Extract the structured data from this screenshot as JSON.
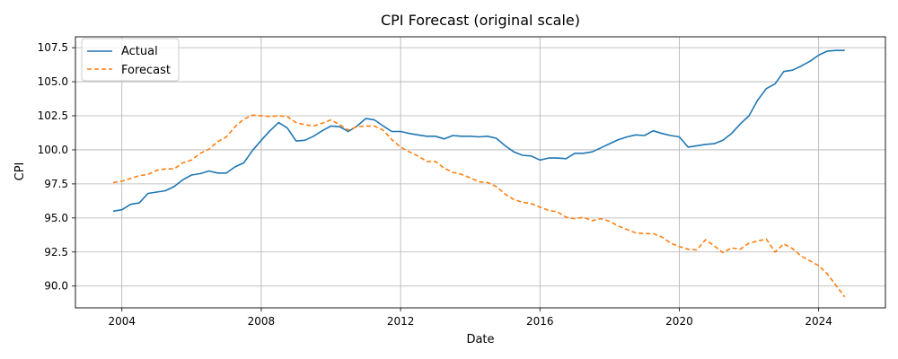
{
  "chart_data": {
    "type": "line",
    "title": "CPI Forecast (original scale)",
    "xlabel": "Date",
    "ylabel": "CPI",
    "xlim": [
      "2002-09",
      "2025-12"
    ],
    "ylim": [
      88.4,
      108.3
    ],
    "x_ticks": [
      {
        "date": "2004-01",
        "label": "2004"
      },
      {
        "date": "2008-01",
        "label": "2008"
      },
      {
        "date": "2012-01",
        "label": "2012"
      },
      {
        "date": "2016-01",
        "label": "2016"
      },
      {
        "date": "2020-01",
        "label": "2020"
      },
      {
        "date": "2024-01",
        "label": "2024"
      }
    ],
    "y_ticks": [
      {
        "value": 90.0,
        "label": "90.0"
      },
      {
        "value": 92.5,
        "label": "92.5"
      },
      {
        "value": 95.0,
        "label": "95.0"
      },
      {
        "value": 97.5,
        "label": "97.5"
      },
      {
        "value": 100.0,
        "label": "100.0"
      },
      {
        "value": 102.5,
        "label": "102.5"
      },
      {
        "value": 105.0,
        "label": "105.0"
      },
      {
        "value": 107.5,
        "label": "107.5"
      }
    ],
    "grid": true,
    "legend_position": "top-left",
    "series": [
      {
        "name": "Actual",
        "color": "#1f77b4",
        "style": "solid",
        "points": [
          [
            "2003-10",
            95.5
          ],
          [
            "2004-01",
            95.6
          ],
          [
            "2004-04",
            96.0
          ],
          [
            "2004-07",
            96.1
          ],
          [
            "2004-10",
            96.8
          ],
          [
            "2005-01",
            96.9
          ],
          [
            "2005-04",
            97.0
          ],
          [
            "2005-07",
            97.3
          ],
          [
            "2005-10",
            97.8
          ],
          [
            "2006-01",
            98.15
          ],
          [
            "2006-04",
            98.25
          ],
          [
            "2006-07",
            98.45
          ],
          [
            "2006-10",
            98.3
          ],
          [
            "2007-01",
            98.3
          ],
          [
            "2007-04",
            98.75
          ],
          [
            "2007-07",
            99.05
          ],
          [
            "2007-10",
            99.95
          ],
          [
            "2008-01",
            100.7
          ],
          [
            "2008-04",
            101.4
          ],
          [
            "2008-07",
            102.0
          ],
          [
            "2008-10",
            101.6
          ],
          [
            "2009-01",
            100.65
          ],
          [
            "2009-04",
            100.7
          ],
          [
            "2009-07",
            101.0
          ],
          [
            "2009-10",
            101.4
          ],
          [
            "2010-01",
            101.75
          ],
          [
            "2010-04",
            101.7
          ],
          [
            "2010-07",
            101.35
          ],
          [
            "2010-10",
            101.75
          ],
          [
            "2011-01",
            102.3
          ],
          [
            "2011-04",
            102.2
          ],
          [
            "2011-07",
            101.75
          ],
          [
            "2011-10",
            101.35
          ],
          [
            "2012-01",
            101.35
          ],
          [
            "2012-04",
            101.2
          ],
          [
            "2012-07",
            101.1
          ],
          [
            "2012-10",
            101.0
          ],
          [
            "2013-01",
            101.0
          ],
          [
            "2013-04",
            100.8
          ],
          [
            "2013-07",
            101.05
          ],
          [
            "2013-10",
            101.0
          ],
          [
            "2014-01",
            101.0
          ],
          [
            "2014-04",
            100.95
          ],
          [
            "2014-07",
            101.0
          ],
          [
            "2014-10",
            100.85
          ],
          [
            "2015-01",
            100.3
          ],
          [
            "2015-04",
            99.85
          ],
          [
            "2015-07",
            99.6
          ],
          [
            "2015-10",
            99.55
          ],
          [
            "2016-01",
            99.25
          ],
          [
            "2016-04",
            99.4
          ],
          [
            "2016-07",
            99.4
          ],
          [
            "2016-10",
            99.35
          ],
          [
            "2017-01",
            99.75
          ],
          [
            "2017-04",
            99.75
          ],
          [
            "2017-07",
            99.85
          ],
          [
            "2017-10",
            100.15
          ],
          [
            "2018-01",
            100.45
          ],
          [
            "2018-04",
            100.75
          ],
          [
            "2018-07",
            100.95
          ],
          [
            "2018-10",
            101.1
          ],
          [
            "2019-01",
            101.05
          ],
          [
            "2019-04",
            101.4
          ],
          [
            "2019-07",
            101.2
          ],
          [
            "2019-10",
            101.05
          ],
          [
            "2020-01",
            100.95
          ],
          [
            "2020-04",
            100.2
          ],
          [
            "2020-07",
            100.3
          ],
          [
            "2020-10",
            100.4
          ],
          [
            "2021-01",
            100.45
          ],
          [
            "2021-04",
            100.7
          ],
          [
            "2021-07",
            101.2
          ],
          [
            "2021-10",
            101.9
          ],
          [
            "2022-01",
            102.5
          ],
          [
            "2022-04",
            103.65
          ],
          [
            "2022-07",
            104.5
          ],
          [
            "2022-10",
            104.85
          ],
          [
            "2023-01",
            105.75
          ],
          [
            "2023-04",
            105.85
          ],
          [
            "2023-07",
            106.15
          ],
          [
            "2023-10",
            106.5
          ],
          [
            "2024-01",
            106.95
          ],
          [
            "2024-04",
            107.25
          ],
          [
            "2024-07",
            107.3
          ],
          [
            "2024-10",
            107.3
          ]
        ]
      },
      {
        "name": "Forecast",
        "color": "#ff7f0e",
        "style": "dashed",
        "points": [
          [
            "2003-10",
            97.6
          ],
          [
            "2004-01",
            97.7
          ],
          [
            "2004-04",
            97.9
          ],
          [
            "2004-07",
            98.1
          ],
          [
            "2004-10",
            98.2
          ],
          [
            "2005-01",
            98.5
          ],
          [
            "2005-04",
            98.6
          ],
          [
            "2005-07",
            98.6
          ],
          [
            "2005-10",
            99.05
          ],
          [
            "2006-01",
            99.25
          ],
          [
            "2006-04",
            99.75
          ],
          [
            "2006-07",
            100.05
          ],
          [
            "2006-10",
            100.6
          ],
          [
            "2007-01",
            100.95
          ],
          [
            "2007-04",
            101.7
          ],
          [
            "2007-07",
            102.25
          ],
          [
            "2007-10",
            102.55
          ],
          [
            "2008-01",
            102.5
          ],
          [
            "2008-04",
            102.45
          ],
          [
            "2008-07",
            102.5
          ],
          [
            "2008-10",
            102.45
          ],
          [
            "2009-01",
            102.0
          ],
          [
            "2009-04",
            101.85
          ],
          [
            "2009-07",
            101.75
          ],
          [
            "2009-10",
            101.95
          ],
          [
            "2010-01",
            102.2
          ],
          [
            "2010-04",
            101.85
          ],
          [
            "2010-07",
            101.45
          ],
          [
            "2010-10",
            101.7
          ],
          [
            "2011-01",
            101.75
          ],
          [
            "2011-04",
            101.75
          ],
          [
            "2011-07",
            101.45
          ],
          [
            "2011-10",
            100.75
          ],
          [
            "2012-01",
            100.2
          ],
          [
            "2012-04",
            99.85
          ],
          [
            "2012-07",
            99.55
          ],
          [
            "2012-10",
            99.15
          ],
          [
            "2013-01",
            99.15
          ],
          [
            "2013-04",
            98.65
          ],
          [
            "2013-07",
            98.35
          ],
          [
            "2013-10",
            98.2
          ],
          [
            "2014-01",
            97.95
          ],
          [
            "2014-04",
            97.65
          ],
          [
            "2014-07",
            97.6
          ],
          [
            "2014-10",
            97.3
          ],
          [
            "2015-01",
            96.75
          ],
          [
            "2015-04",
            96.35
          ],
          [
            "2015-07",
            96.15
          ],
          [
            "2015-10",
            96.05
          ],
          [
            "2016-01",
            95.8
          ],
          [
            "2016-04",
            95.55
          ],
          [
            "2016-07",
            95.45
          ],
          [
            "2016-10",
            95.05
          ],
          [
            "2017-01",
            94.95
          ],
          [
            "2017-04",
            95.05
          ],
          [
            "2017-07",
            94.8
          ],
          [
            "2017-10",
            94.95
          ],
          [
            "2018-01",
            94.75
          ],
          [
            "2018-04",
            94.4
          ],
          [
            "2018-07",
            94.15
          ],
          [
            "2018-10",
            93.9
          ],
          [
            "2019-01",
            93.85
          ],
          [
            "2019-04",
            93.85
          ],
          [
            "2019-07",
            93.6
          ],
          [
            "2019-10",
            93.15
          ],
          [
            "2020-01",
            92.9
          ],
          [
            "2020-04",
            92.7
          ],
          [
            "2020-07",
            92.65
          ],
          [
            "2020-10",
            93.4
          ],
          [
            "2021-01",
            92.95
          ],
          [
            "2021-04",
            92.45
          ],
          [
            "2021-07",
            92.8
          ],
          [
            "2021-10",
            92.7
          ],
          [
            "2022-01",
            93.15
          ],
          [
            "2022-04",
            93.3
          ],
          [
            "2022-07",
            93.45
          ],
          [
            "2022-10",
            92.5
          ],
          [
            "2023-01",
            93.1
          ],
          [
            "2023-04",
            92.75
          ],
          [
            "2023-07",
            92.2
          ],
          [
            "2023-10",
            91.85
          ],
          [
            "2024-01",
            91.5
          ],
          [
            "2024-04",
            90.9
          ],
          [
            "2024-07",
            90.05
          ],
          [
            "2024-10",
            89.2
          ]
        ]
      }
    ]
  }
}
